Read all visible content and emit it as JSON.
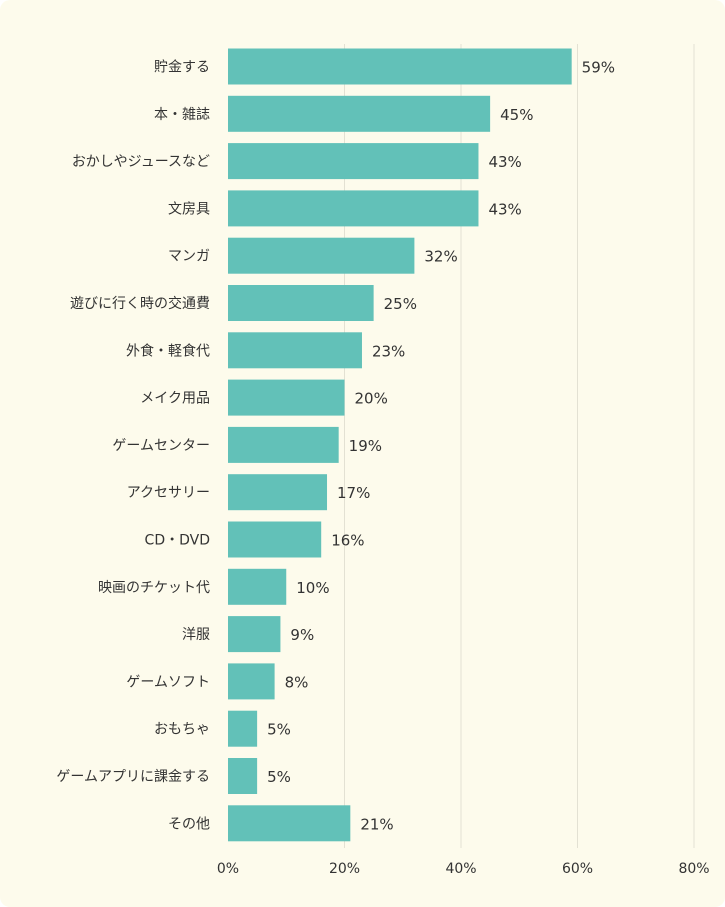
{
  "chart_data": {
    "type": "bar",
    "orientation": "horizontal",
    "categories": [
      "貯金する",
      "本・雑誌",
      "おかしやジュースなど",
      "文房具",
      "マンガ",
      "遊びに行く時の交通費",
      "外食・軽食代",
      "メイク用品",
      "ゲームセンター",
      "アクセサリー",
      "CD・DVD",
      "映画のチケット代",
      "洋服",
      "ゲームソフト",
      "おもちゃ",
      "ゲームアプリに課金する",
      "その他"
    ],
    "values": [
      59,
      45,
      43,
      43,
      32,
      25,
      23,
      20,
      19,
      17,
      16,
      10,
      9,
      8,
      5,
      5,
      21
    ],
    "value_labels": [
      "59%",
      "45%",
      "43%",
      "43%",
      "32%",
      "25%",
      "23%",
      "20%",
      "19%",
      "17%",
      "16%",
      "10%",
      "9%",
      "8%",
      "5%",
      "5%",
      "21%"
    ],
    "xlim": [
      0,
      80
    ],
    "x_ticks": [
      0,
      20,
      40,
      60,
      80
    ],
    "x_tick_labels": [
      "0%",
      "20%",
      "40%",
      "60%",
      "80%"
    ],
    "grid": true,
    "bar_color": "#62c1b8",
    "background_color": "#fdfbec"
  }
}
